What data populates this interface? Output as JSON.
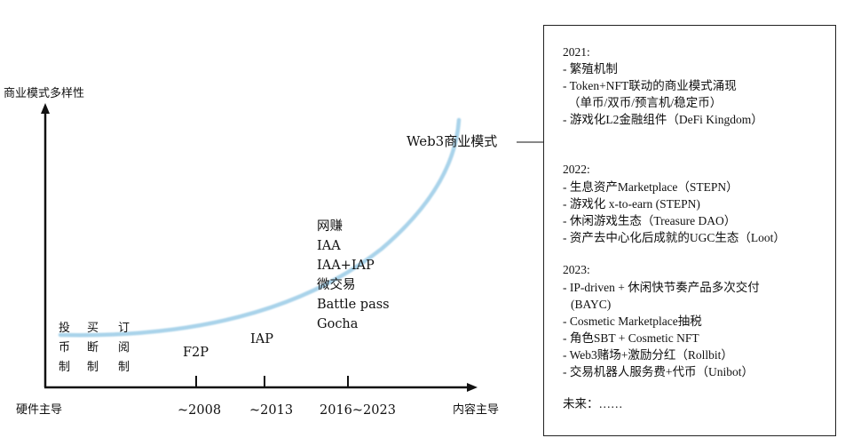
{
  "axes": {
    "y_label": "商业模式多样性",
    "x_start_label": "硬件主导",
    "x_end_label": "内容主导",
    "ticks": [
      "~2008",
      "~2013",
      "2016~2023"
    ]
  },
  "early_models": [
    [
      "投",
      "币",
      "制"
    ],
    [
      "买",
      "断",
      "制"
    ],
    [
      "订",
      "阅",
      "制"
    ]
  ],
  "stages": {
    "f2p": "F2P",
    "iap": "IAP",
    "modern": [
      "网赚",
      "IAA",
      "IAA+IAP",
      "微交易",
      "Battle pass",
      "Gocha"
    ],
    "web3": "Web3商业模式"
  },
  "colors": {
    "curve": "#a9d3ea",
    "axis": "#111111"
  },
  "panel": {
    "y2021": {
      "title": "2021:",
      "items": [
        "- 繁殖机制",
        "- Token+NFT联动的商业模式涌现",
        "（单币/双币/预言机/稳定币）",
        "- 游戏化L2金融组件（DeFi Kingdom）"
      ]
    },
    "y2022": {
      "title": "2022:",
      "items": [
        "- 生息资产Marketplace（STEPN）",
        "- 游戏化 x-to-earn (STEPN)",
        "- 休闲游戏生态（Treasure DAO）",
        "- 资产去中心化后成就的UGC生态（Loot）"
      ]
    },
    "y2023": {
      "title": "2023:",
      "items": [
        "- IP-driven + 休闲快节奏产品多次交付",
        "(BAYC)",
        "- Cosmetic Marketplace抽税",
        "- 角色SBT + Cosmetic NFT",
        "- Web3赌场+激励分红（Rollbit）",
        "- 交易机器人服务费+代币（Unibot）"
      ]
    },
    "future": "未来：……"
  }
}
